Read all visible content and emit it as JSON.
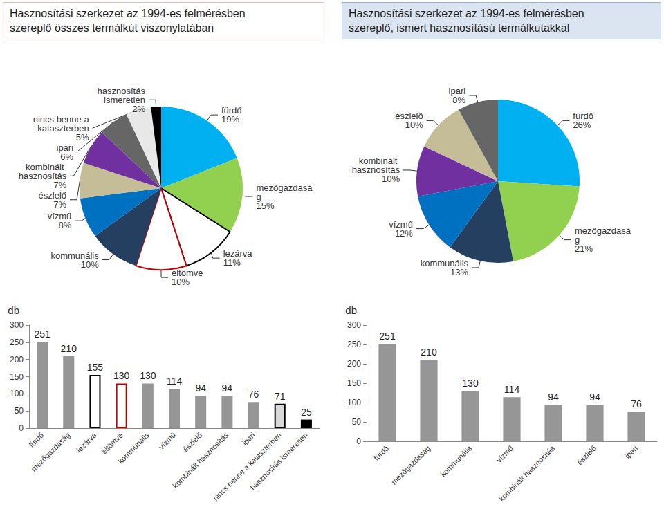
{
  "chart_data": [
    {
      "type": "pie",
      "title": "Hasznosítási szerkezet az 1994-es felmérésben szereplő összes termálkút viszonylatában",
      "categories": [
        "fürdő",
        "mezőgazdaság",
        "lezárva",
        "eltömve",
        "kommunális",
        "vízmű",
        "észlelő",
        "kombinált hasznosítás",
        "ipari",
        "nincs benne a kataszterben",
        "hasznosítás ismeretlen"
      ],
      "values": [
        19,
        15,
        11,
        10,
        10,
        8,
        7,
        7,
        6,
        5,
        2
      ],
      "value_labels": [
        "19%",
        "15%",
        "11%",
        "10%",
        "10%",
        "8%",
        "7%",
        "7%",
        "6%",
        "5%",
        "2%"
      ],
      "colors": [
        "#00b0f0",
        "#92d050",
        "#ffffff",
        "#ffffff",
        "#243f60",
        "#0070c0",
        "#c4bd97",
        "#7030a0",
        "#666666",
        "#e8e8e8",
        "#000000"
      ]
    },
    {
      "type": "pie",
      "title": "Hasznosítási szerkezet az 1994-es felmérésben szereplő, ismert hasznosítású termálkutakkal",
      "categories": [
        "fürdő",
        "mezőgazdaság",
        "kommunális",
        "vízmű",
        "kombinált hasznosítás",
        "észlelő",
        "ipari"
      ],
      "values": [
        26,
        21,
        13,
        12,
        10,
        10,
        8
      ],
      "value_labels": [
        "26%",
        "21%",
        "13%",
        "12%",
        "10%",
        "10%",
        "8%"
      ],
      "colors": [
        "#00b0f0",
        "#92d050",
        "#243f60",
        "#0070c0",
        "#7030a0",
        "#c4bd97",
        "#666666"
      ]
    },
    {
      "type": "bar",
      "ylabel": "db",
      "categories": [
        "fürdő",
        "mezőgazdaság",
        "lezárva",
        "eltömve",
        "kommunális",
        "vízmű",
        "észlelő",
        "kombinált hasznosítás",
        "ipari",
        "nincs benne a kataszterben",
        "hasznosítás ismeretlen"
      ],
      "values": [
        251,
        210,
        155,
        130,
        130,
        114,
        94,
        94,
        76,
        71,
        25
      ],
      "colors": [
        "#969696",
        "#969696",
        "#ffffff",
        "#ffffff",
        "#969696",
        "#969696",
        "#969696",
        "#969696",
        "#969696",
        "#d9d9d9",
        "#000000"
      ],
      "ylim": [
        0,
        300
      ],
      "yticks": [
        0,
        50,
        100,
        150,
        200,
        250,
        300
      ],
      "grid": false,
      "data_labels": true
    },
    {
      "type": "bar",
      "ylabel": "db",
      "categories": [
        "fürdő",
        "mezőgazdaság",
        "kommunális",
        "vízmű",
        "kombinált hasznosítás",
        "észlelő",
        "ipari"
      ],
      "values": [
        251,
        210,
        130,
        114,
        94,
        94,
        76
      ],
      "color": "#969696",
      "ylim": [
        0,
        300
      ],
      "yticks": [
        0,
        50,
        100,
        150,
        200,
        250,
        300
      ],
      "grid": false,
      "data_labels": true
    }
  ]
}
